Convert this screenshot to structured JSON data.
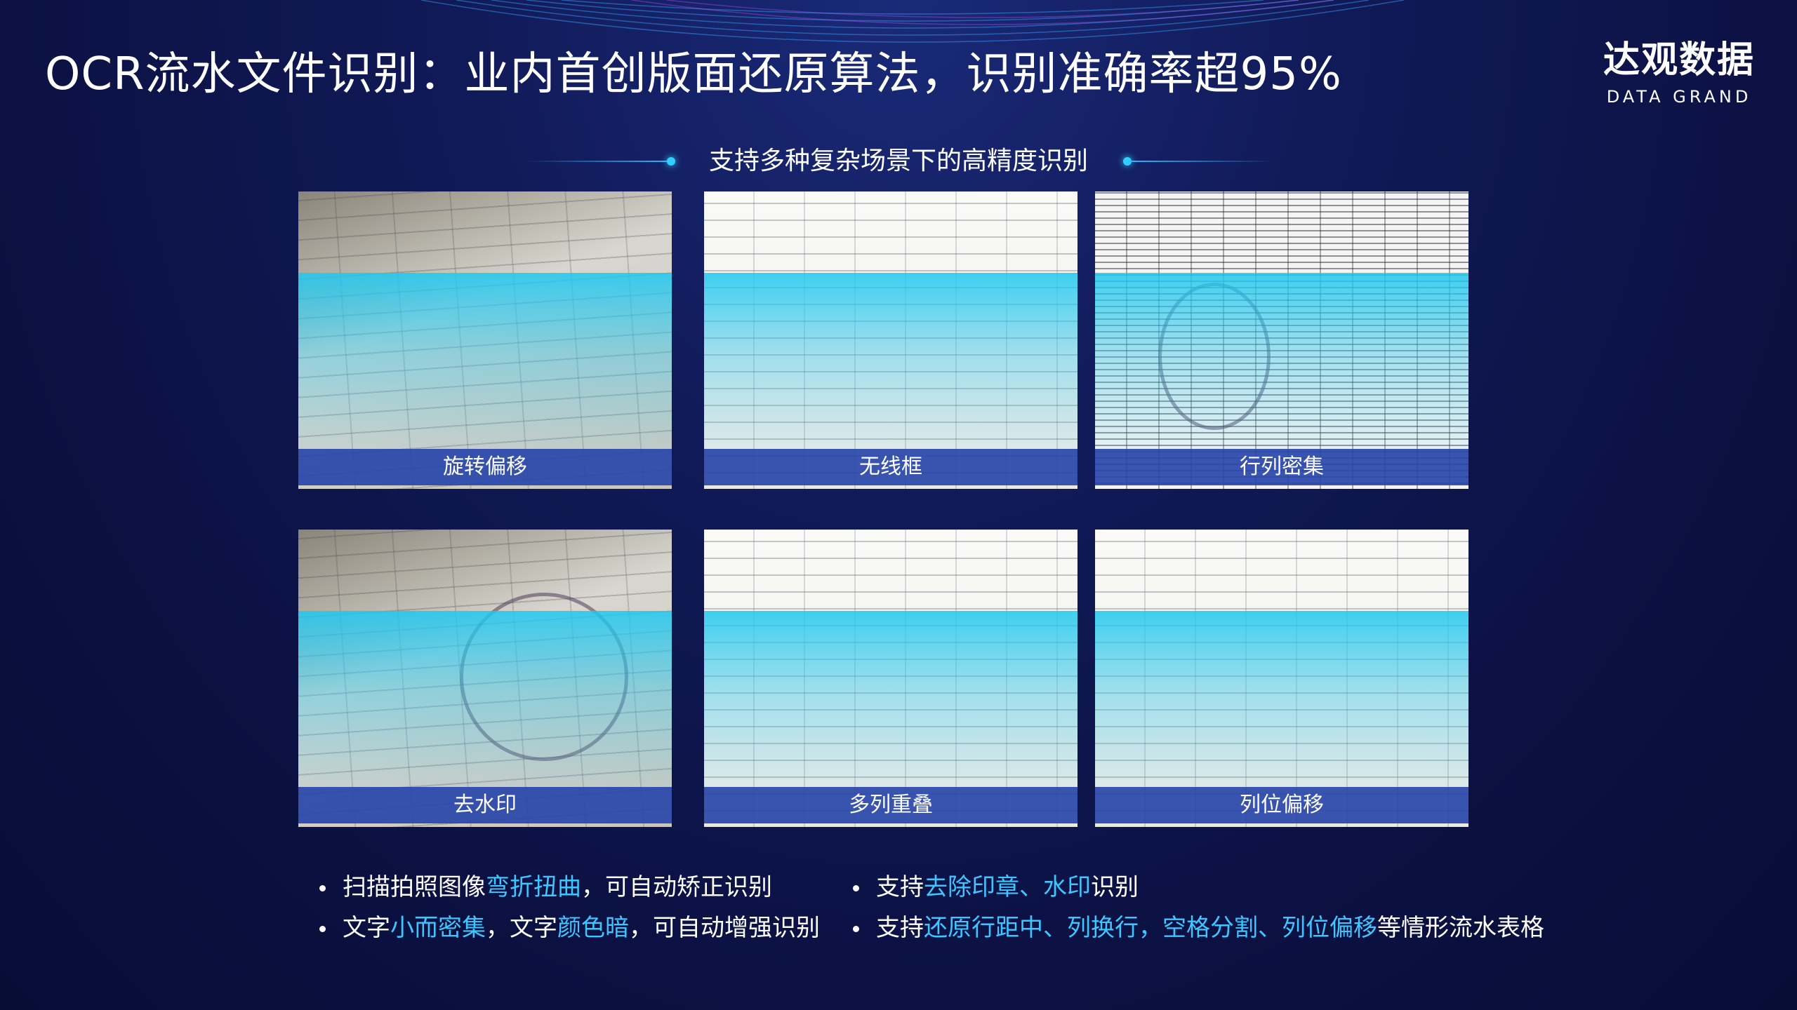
{
  "header": {
    "title": "OCR流水文件识别：业内首创版面还原算法，识别准确率超95%",
    "logo": "达观数据",
    "logo_sub": "DATA GRAND"
  },
  "subtitle": "支持多种复杂场景下的高精度识别",
  "panels": [
    {
      "label": "旋转偏移"
    },
    {
      "label": "无线框"
    },
    {
      "label": "行列密集"
    },
    {
      "label": "去水印"
    },
    {
      "label": "多列重叠"
    },
    {
      "label": "列位偏移"
    }
  ],
  "bullets": [
    [
      {
        "text": "扫描拍照图像",
        "emphasis": false
      },
      {
        "text": "弯折扭曲",
        "emphasis": true
      },
      {
        "text": "，可自动矫正识别",
        "emphasis": false
      }
    ],
    [
      {
        "text": "支持",
        "emphasis": false
      },
      {
        "text": "去除印章、水印",
        "emphasis": true
      },
      {
        "text": "识别",
        "emphasis": false
      }
    ],
    [
      {
        "text": "文字",
        "emphasis": false
      },
      {
        "text": "小而密集",
        "emphasis": true
      },
      {
        "text": "，文字",
        "emphasis": false
      },
      {
        "text": "颜色暗",
        "emphasis": true
      },
      {
        "text": "，可自动增强识别",
        "emphasis": false
      }
    ],
    [
      {
        "text": "支持",
        "emphasis": false
      },
      {
        "text": "还原行距中、列换行，空格分割、列位偏移",
        "emphasis": true
      },
      {
        "text": "等情形流水表格",
        "emphasis": false
      }
    ]
  ]
}
